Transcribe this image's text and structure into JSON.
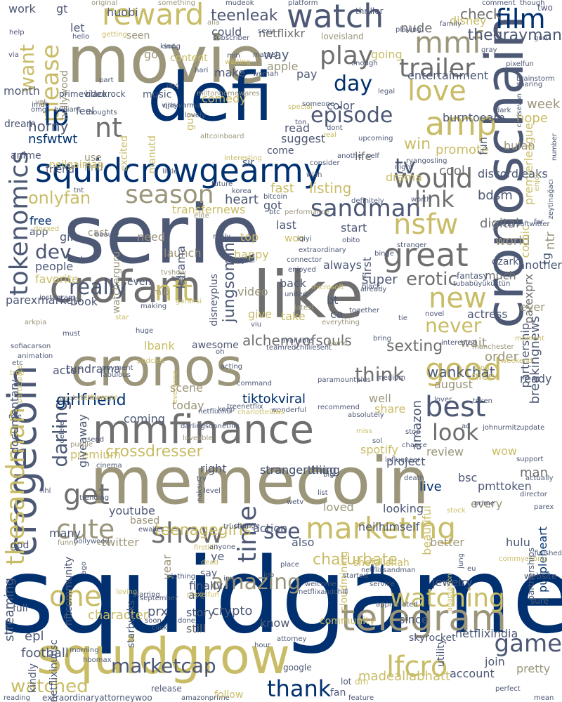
{
  "palette": {
    "navy": "#00306f",
    "slate": "#4d5875",
    "gray": "#6f6f6f",
    "olive": "#9b957a",
    "khaki": "#c9bc66",
    "yellow": "#e2cf55",
    "light": "#d4d0c4"
  },
  "words": [
    {
      "text": "squidgame"
    },
    {
      "text": "serie"
    },
    {
      "text": "movie"
    },
    {
      "text": "memecoin"
    },
    {
      "text": "cronoschain"
    },
    {
      "text": "like"
    },
    {
      "text": "cronos"
    },
    {
      "text": "defi"
    },
    {
      "text": "squidgrow"
    },
    {
      "text": "mmfinance"
    },
    {
      "text": "crofam"
    },
    {
      "text": "squidcrowgearmy"
    },
    {
      "text": "crogecoin"
    },
    {
      "text": "tokenomics"
    },
    {
      "text": "telegram"
    },
    {
      "text": "marketing"
    },
    {
      "text": "reward"
    },
    {
      "text": "watch"
    },
    {
      "text": "film"
    },
    {
      "text": "love"
    },
    {
      "text": "amp"
    },
    {
      "text": "good"
    },
    {
      "text": "best"
    },
    {
      "text": "great"
    },
    {
      "text": "show"
    },
    {
      "text": "cute"
    },
    {
      "text": "sandman"
    },
    {
      "text": "season"
    },
    {
      "text": "would"
    },
    {
      "text": "play"
    },
    {
      "text": "episode"
    },
    {
      "text": "new"
    },
    {
      "text": "nsfw"
    },
    {
      "text": "thesandman"
    },
    {
      "text": "watching"
    },
    {
      "text": "game"
    },
    {
      "text": "lfcro"
    },
    {
      "text": "thank"
    },
    {
      "text": "amazing"
    },
    {
      "text": "time"
    },
    {
      "text": "one"
    },
    {
      "text": "darling"
    },
    {
      "text": "look"
    },
    {
      "text": "nft"
    },
    {
      "text": "really"
    },
    {
      "text": "get"
    },
    {
      "text": "trailer"
    },
    {
      "text": "mmf"
    },
    {
      "text": "please"
    },
    {
      "text": "want"
    },
    {
      "text": "day"
    },
    {
      "text": "lp"
    },
    {
      "text": "nt"
    },
    {
      "text": "link"
    },
    {
      "text": "tv"
    },
    {
      "text": "erotic"
    },
    {
      "text": "dev"
    },
    {
      "text": "onlyfan"
    },
    {
      "text": "see"
    },
    {
      "text": "u"
    },
    {
      "text": "jungsomin"
    },
    {
      "text": "alchemyofsouls"
    },
    {
      "text": "never"
    },
    {
      "text": "think"
    },
    {
      "text": "crossdresser"
    },
    {
      "text": "tiktokviral"
    },
    {
      "text": "sexting"
    },
    {
      "text": "wankchat"
    },
    {
      "text": "marketcap"
    },
    {
      "text": "watched"
    },
    {
      "text": "chaturbate"
    },
    {
      "text": "teenagegirls"
    },
    {
      "text": "girlfriend"
    },
    {
      "text": "stranger thing"
    },
    {
      "text": "strangerthing"
    },
    {
      "text": "teenleak"
    },
    {
      "text": "netflixkr"
    },
    {
      "text": "nude"
    },
    {
      "text": "check"
    },
    {
      "text": "thegrayman"
    },
    {
      "text": "disney"
    },
    {
      "text": "entertainment"
    },
    {
      "text": "horny"
    },
    {
      "text": "nsfwtwt"
    },
    {
      "text": "burntoearn"
    },
    {
      "text": "premierleague"
    },
    {
      "text": "transfernews"
    },
    {
      "text": "listing"
    },
    {
      "text": "heart"
    },
    {
      "text": "fast"
    },
    {
      "text": "got"
    },
    {
      "text": "win"
    },
    {
      "text": "drama"
    },
    {
      "text": "life"
    },
    {
      "text": "cool"
    },
    {
      "text": "promote"
    },
    {
      "text": "hope"
    },
    {
      "text": "bulan"
    },
    {
      "text": "week"
    },
    {
      "text": "fun"
    },
    {
      "text": "discordleaks"
    },
    {
      "text": "bdsm"
    },
    {
      "text": "digital"
    },
    {
      "text": "world"
    },
    {
      "text": "ntr"
    },
    {
      "text": "tg"
    },
    {
      "text": "comic"
    },
    {
      "text": "much"
    },
    {
      "text": "another"
    },
    {
      "text": "parexprx"
    },
    {
      "text": "partnership"
    },
    {
      "text": "breakingnews"
    },
    {
      "text": "actress"
    },
    {
      "text": "ever"
    },
    {
      "text": "wait"
    },
    {
      "text": "order"
    },
    {
      "text": "nice"
    },
    {
      "text": "ready"
    },
    {
      "text": "august"
    },
    {
      "text": "amazon"
    },
    {
      "text": "well"
    },
    {
      "text": "share"
    },
    {
      "text": "review"
    },
    {
      "text": "spotify"
    },
    {
      "text": "wow"
    },
    {
      "text": "project"
    },
    {
      "text": "bsc"
    },
    {
      "text": "pmttoken"
    },
    {
      "text": "man"
    },
    {
      "text": "every"
    },
    {
      "text": "live"
    },
    {
      "text": "hulu"
    },
    {
      "text": "better"
    },
    {
      "text": "purpleheart"
    },
    {
      "text": "jewelry"
    },
    {
      "text": "pretty"
    },
    {
      "text": "account"
    },
    {
      "text": "madealiabhatt"
    },
    {
      "text": "join"
    },
    {
      "text": "netflixindia"
    },
    {
      "text": "since"
    },
    {
      "text": "beautiful"
    },
    {
      "text": "shefalishah"
    },
    {
      "text": "cloudmining"
    },
    {
      "text": "know"
    },
    {
      "text": "crypto"
    },
    {
      "text": "community"
    },
    {
      "text": "story"
    },
    {
      "text": "still"
    },
    {
      "text": "character"
    },
    {
      "text": "prx"
    },
    {
      "text": "say"
    },
    {
      "text": "finally"
    },
    {
      "text": "ye"
    },
    {
      "text": "year"
    },
    {
      "text": "starbucks"
    },
    {
      "text": "art"
    },
    {
      "text": "twitter"
    },
    {
      "text": "youtube"
    },
    {
      "text": "based"
    },
    {
      "text": "many"
    },
    {
      "text": "also"
    },
    {
      "text": "action"
    },
    {
      "text": "neilhimself"
    },
    {
      "text": "looking"
    },
    {
      "text": "loved"
    },
    {
      "text": "right"
    },
    {
      "text": "premium"
    },
    {
      "text": "giveaway"
    },
    {
      "text": "coming"
    },
    {
      "text": "today"
    },
    {
      "text": "scene"
    },
    {
      "text": "awesome"
    },
    {
      "text": "lbank"
    },
    {
      "text": "actor"
    },
    {
      "text": "tvndrama"
    },
    {
      "text": "documentary"
    },
    {
      "text": "book"
    },
    {
      "text": "parexmarket"
    },
    {
      "text": "favorite"
    },
    {
      "text": "people"
    },
    {
      "text": "gift"
    },
    {
      "text": "free"
    },
    {
      "text": "app"
    },
    {
      "text": "cast"
    },
    {
      "text": "need"
    },
    {
      "text": "launch"
    },
    {
      "text": "kdrama"
    },
    {
      "text": "watcherguru"
    },
    {
      "text": "happy"
    },
    {
      "text": "top"
    },
    {
      "text": "woo"
    },
    {
      "text": "always"
    },
    {
      "text": "last"
    },
    {
      "text": "start"
    },
    {
      "text": "first"
    },
    {
      "text": "super"
    },
    {
      "text": "back"
    },
    {
      "text": "bt"
    },
    {
      "text": "ca"
    },
    {
      "text": "take"
    },
    {
      "text": "give"
    },
    {
      "text": "video"
    },
    {
      "text": "even"
    },
    {
      "text": "disneyplus"
    },
    {
      "text": "read"
    },
    {
      "text": "suggest"
    },
    {
      "text": "come"
    },
    {
      "text": "sir"
    },
    {
      "text": "guy"
    },
    {
      "text": "comedy"
    },
    {
      "text": "make"
    },
    {
      "text": "music"
    },
    {
      "text": "month"
    },
    {
      "text": "dream"
    },
    {
      "text": "anime"
    },
    {
      "text": "feel"
    },
    {
      "text": "find"
    },
    {
      "text": "use"
    },
    {
      "text": "go"
    },
    {
      "text": "excited"
    },
    {
      "text": "neilgaiman"
    },
    {
      "text": "friend"
    },
    {
      "text": "manutd"
    },
    {
      "text": "color"
    },
    {
      "text": "pay"
    },
    {
      "text": "apple"
    },
    {
      "text": "way"
    },
    {
      "text": "could"
    },
    {
      "text": "going"
    },
    {
      "text": "content"
    },
    {
      "text": "seen"
    },
    {
      "text": "huobi"
    },
    {
      "text": "gt"
    },
    {
      "text": "let"
    },
    {
      "text": "work"
    },
    {
      "text": "hollywood"
    },
    {
      "text": "primevideo"
    },
    {
      "text": "blackrock"
    },
    {
      "text": "mlb"
    },
    {
      "text": "ozark"
    },
    {
      "text": "fantasy"
    },
    {
      "text": "loveisland"
    },
    {
      "text": "netflixinubsc"
    },
    {
      "text": "extraordinaryattorneywoo"
    },
    {
      "text": "release"
    },
    {
      "text": "amazonprime"
    },
    {
      "text": "follow"
    },
    {
      "text": "fan"
    },
    {
      "text": "dm"
    },
    {
      "text": "lot"
    },
    {
      "text": "football"
    },
    {
      "text": "epl"
    },
    {
      "text": "kindly"
    },
    {
      "text": "streaming"
    },
    {
      "text": "nftcommunity"
    },
    {
      "text": "full"
    },
    {
      "text": "god"
    },
    {
      "text": "skyrocket"
    },
    {
      "text": "utility"
    },
    {
      "text": "website"
    },
    {
      "text": "sure"
    },
    {
      "text": "partnerships"
    },
    {
      "text": "thriller"
    },
    {
      "text": "platform"
    },
    {
      "text": "original"
    },
    {
      "text": "something"
    },
    {
      "text": "comment"
    },
    {
      "text": "though"
    },
    {
      "text": "two"
    },
    {
      "text": "gon"
    },
    {
      "text": "help"
    },
    {
      "text": "hello"
    },
    {
      "text": "getting"
    },
    {
      "text": "mudeok"
    },
    {
      "text": "alia"
    },
    {
      "text": "sexy"
    },
    {
      "text": "subscriber"
    },
    {
      "text": "marvel"
    },
    {
      "text": "min"
    },
    {
      "text": "waiting"
    },
    {
      "text": "playing"
    },
    {
      "text": "family"
    },
    {
      "text": "gray"
    },
    {
      "text": "kind"
    },
    {
      "text": "hari"
    },
    {
      "text": "part"
    },
    {
      "text": "qris"
    },
    {
      "text": "dog"
    },
    {
      "text": "enough"
    },
    {
      "text": "woman"
    },
    {
      "text": "legal"
    },
    {
      "text": "pixelfun"
    },
    {
      "text": "brainstorm"
    },
    {
      "text": "sharing"
    },
    {
      "text": "miltonhomewares"
    },
    {
      "text": "vijayvarma"
    },
    {
      "text": "special"
    },
    {
      "text": "someone"
    },
    {
      "text": "ton"
    },
    {
      "text": "upcoming"
    },
    {
      "text": "real"
    },
    {
      "text": "dont"
    },
    {
      "text": "dark"
    },
    {
      "text": "chrisevan"
    },
    {
      "text": "number"
    },
    {
      "text": "enjoy"
    },
    {
      "text": "zeytinağacı"
    },
    {
      "text": "imdb"
    },
    {
      "text": "brilliant"
    },
    {
      "text": "thoughts"
    },
    {
      "text": "lovely"
    },
    {
      "text": "altcoinboard"
    },
    {
      "text": "interesting"
    },
    {
      "text": "another self"
    },
    {
      "text": "consider"
    },
    {
      "text": "ryangosling"
    },
    {
      "text": "night"
    },
    {
      "text": "wish"
    },
    {
      "text": "future"
    },
    {
      "text": "little"
    },
    {
      "text": "tnt"
    },
    {
      "text": "korea"
    },
    {
      "text": "bitcoin"
    },
    {
      "text": "btc"
    },
    {
      "text": "performance"
    },
    {
      "text": "definitely"
    },
    {
      "text": "worth"
    },
    {
      "text": "authorsoftwitter"
    },
    {
      "text": "far"
    },
    {
      "text": "doxxed"
    },
    {
      "text": "elite"
    },
    {
      "text": "beauty"
    },
    {
      "text": "reply"
    },
    {
      "text": "iqiyi"
    },
    {
      "text": "obito"
    },
    {
      "text": "binge"
    },
    {
      "text": "stranger"
    },
    {
      "text": "extraordinary"
    },
    {
      "text": "connector"
    },
    {
      "text": "jual"
    },
    {
      "text": "bmb"
    },
    {
      "text": "tvshow"
    },
    {
      "text": "said"
    },
    {
      "text": "enjoyed"
    },
    {
      "text": "microsoft"
    },
    {
      "text": "already"
    },
    {
      "text": "black"
    },
    {
      "text": "tubabüyüküstün"
    },
    {
      "text": "novel"
    },
    {
      "text": "making"
    },
    {
      "text": "garansi"
    },
    {
      "text": "united"
    },
    {
      "text": "latest"
    },
    {
      "text": "everything"
    },
    {
      "text": "together"
    },
    {
      "text": "viu"
    },
    {
      "text": "instagram"
    },
    {
      "text": "arkpia"
    },
    {
      "text": "must"
    },
    {
      "text": "huge"
    },
    {
      "text": "star"
    },
    {
      "text": "tie"
    },
    {
      "text": "interested"
    },
    {
      "text": "bring"
    },
    {
      "text": "manchester"
    },
    {
      "text": "moment"
    },
    {
      "text": "weekend"
    },
    {
      "text": "sofiacarson"
    },
    {
      "text": "animation"
    },
    {
      "text": "etc"
    },
    {
      "text": "true"
    },
    {
      "text": "payment"
    },
    {
      "text": "podcast"
    },
    {
      "text": "fabulous"
    },
    {
      "text": "everyone"
    },
    {
      "text": "acting"
    },
    {
      "text": "oh"
    },
    {
      "text": "home"
    },
    {
      "text": "teamredchilliesent"
    },
    {
      "text": "available"
    },
    {
      "text": "medium"
    },
    {
      "text": "paramountplus"
    },
    {
      "text": "command"
    },
    {
      "text": "long"
    },
    {
      "text": "lover"
    },
    {
      "text": "token"
    },
    {
      "text": "participate"
    },
    {
      "text": "peakybindersgo"
    },
    {
      "text": "netflixserie"
    },
    {
      "text": "treenetflix"
    },
    {
      "text": "keep"
    },
    {
      "text": "wonderful"
    },
    {
      "text": "recommend"
    },
    {
      "text": "netflixinu"
    },
    {
      "text": "charlottelaws"
    },
    {
      "text": "absolutely"
    },
    {
      "text": "ad"
    },
    {
      "text": "johnurmitz"
    },
    {
      "text": "update"
    },
    {
      "text": "delete"
    },
    {
      "text": "role"
    },
    {
      "text": "darlingsonnetflix"
    },
    {
      "text": "loveable"
    },
    {
      "text": "miss"
    },
    {
      "text": "chance"
    },
    {
      "text": "influencer"
    },
    {
      "text": "stop"
    },
    {
      "text": "sol"
    },
    {
      "text": "purple"
    },
    {
      "text": "send"
    },
    {
      "text": "cinema"
    },
    {
      "text": "try"
    },
    {
      "text": "big"
    },
    {
      "text": "death"
    },
    {
      "text": "support"
    },
    {
      "text": "actually"
    },
    {
      "text": "level"
    },
    {
      "text": "list"
    },
    {
      "text": "trending"
    },
    {
      "text": "naksu"
    },
    {
      "text": "wetv"
    },
    {
      "text": "nhl"
    },
    {
      "text": "prime"
    },
    {
      "text": "director"
    },
    {
      "text": "trusted"
    },
    {
      "text": "change"
    },
    {
      "text": "stock"
    },
    {
      "text": "funny"
    },
    {
      "text": "bollywood"
    },
    {
      "text": "eye"
    },
    {
      "text": "parex"
    },
    {
      "text": "ewallet"
    },
    {
      "text": "firstkill"
    },
    {
      "text": "anyone"
    },
    {
      "text": "dead"
    },
    {
      "text": "ago"
    },
    {
      "text": "clothing"
    },
    {
      "text": "inu"
    },
    {
      "text": "job"
    },
    {
      "text": "place"
    },
    {
      "text": "netflixsandman"
    },
    {
      "text": "started"
    },
    {
      "text": "service"
    },
    {
      "text": "jung"
    },
    {
      "text": "commychong"
    },
    {
      "text": "finished"
    },
    {
      "text": "eu"
    },
    {
      "text": "adaptation"
    },
    {
      "text": "loving"
    },
    {
      "text": "starring"
    },
    {
      "text": "september"
    },
    {
      "text": "pixxelfun"
    },
    {
      "text": "netflixandchill"
    },
    {
      "text": "welcome"
    },
    {
      "text": "appreciated"
    },
    {
      "text": "soon"
    },
    {
      "text": "click"
    },
    {
      "text": "done"
    },
    {
      "text": "morning"
    },
    {
      "text": "hbomax"
    },
    {
      "text": "hour"
    },
    {
      "text": "attorney"
    },
    {
      "text": "feature"
    },
    {
      "text": "perfect"
    },
    {
      "text": "mean"
    },
    {
      "text": "reading"
    },
    {
      "text": "google"
    },
    {
      "text": "via"
    },
    {
      "text": "omg"
    },
    {
      "text": "yet"
    },
    {
      "text": "song"
    },
    {
      "text": "money"
    }
  ]
}
